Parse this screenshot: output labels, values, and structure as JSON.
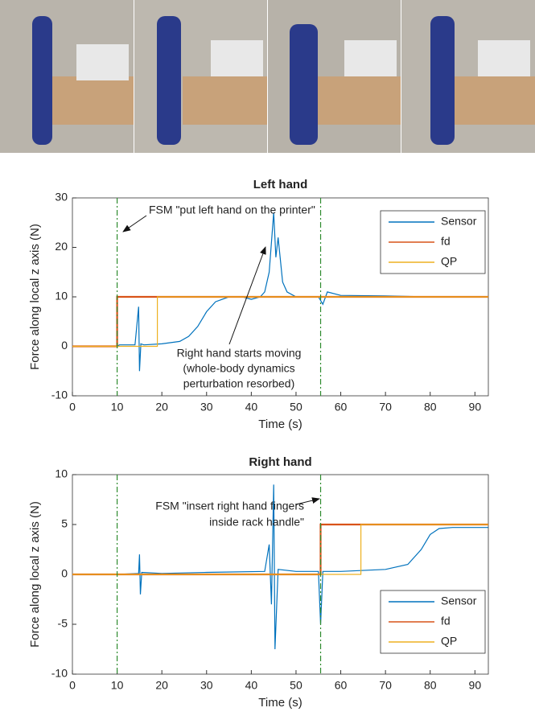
{
  "chart_data": [
    {
      "type": "line",
      "title": "Left hand",
      "xlabel": "Time (s)",
      "ylabel": "Force along local z axis (N)",
      "xlim": [
        0,
        93
      ],
      "ylim": [
        -10,
        30
      ],
      "xticks": [
        0,
        10,
        20,
        30,
        40,
        50,
        60,
        70,
        80,
        90
      ],
      "yticks": [
        -10,
        0,
        10,
        20,
        30
      ],
      "legend": "upper right",
      "vlines": [
        10,
        55.5
      ],
      "vline_color": "#2e8b2e",
      "annotations": [
        [
          "FSM \"put left hand on the printer\""
        ],
        [
          "Right hand starts moving",
          "(whole-body dynamics",
          "perturbation resorbed)"
        ]
      ],
      "series": [
        {
          "name": "Sensor",
          "color": "#0072bd",
          "x": [
            0,
            10,
            10.5,
            14,
            14.8,
            15,
            15.3,
            16,
            20,
            24,
            26,
            28,
            30,
            32,
            35,
            38,
            40,
            42,
            43,
            44,
            45,
            45.5,
            46,
            47,
            48,
            50,
            55,
            56,
            57,
            60,
            70,
            80,
            93
          ],
          "values": [
            0,
            0,
            0.3,
            0.3,
            8,
            -5,
            0.5,
            0.3,
            0.5,
            1,
            2,
            4,
            7,
            9,
            10,
            10,
            9.5,
            10,
            11,
            15,
            27,
            18,
            22,
            13,
            11,
            10,
            10,
            8.5,
            11,
            10.3,
            10.2,
            10,
            10
          ]
        },
        {
          "name": "fd",
          "color": "#d95319",
          "x": [
            0,
            10,
            10,
            93
          ],
          "values": [
            0,
            0,
            10,
            10
          ]
        },
        {
          "name": "QP",
          "color": "#edb120",
          "x": [
            0,
            19,
            19,
            93
          ],
          "values": [
            0,
            0,
            10,
            10
          ]
        }
      ]
    },
    {
      "type": "line",
      "title": "Right hand",
      "xlabel": "Time (s)",
      "ylabel": "Force along local z axis (N)",
      "xlim": [
        0,
        93
      ],
      "ylim": [
        -10,
        10
      ],
      "xticks": [
        0,
        10,
        20,
        30,
        40,
        50,
        60,
        70,
        80,
        90
      ],
      "yticks": [
        -10,
        -5,
        0,
        5,
        10
      ],
      "legend": "lower right",
      "vlines": [
        10,
        55.5
      ],
      "vline_color": "#2e8b2e",
      "annotations": [
        [
          "FSM \"insert right hand fingers",
          "inside rack handle\""
        ]
      ],
      "series": [
        {
          "name": "Sensor",
          "color": "#0072bd",
          "x": [
            0,
            10,
            14.8,
            15,
            15.2,
            15.5,
            20,
            30,
            43,
            44,
            44.5,
            45,
            45.3,
            46,
            50,
            55,
            55.5,
            56,
            60,
            70,
            75,
            78,
            80,
            82,
            85,
            93
          ],
          "values": [
            0,
            0,
            0.1,
            2,
            -2,
            0.2,
            0.1,
            0.2,
            0.3,
            3,
            -3,
            9,
            -7.5,
            0.5,
            0.3,
            0.3,
            -5,
            0.3,
            0.3,
            0.5,
            1,
            2.5,
            4,
            4.6,
            4.7,
            4.7
          ]
        },
        {
          "name": "fd",
          "color": "#d95319",
          "x": [
            0,
            55.5,
            55.5,
            93
          ],
          "values": [
            0,
            0,
            5,
            5
          ]
        },
        {
          "name": "QP",
          "color": "#edb120",
          "x": [
            0,
            64.5,
            64.5,
            93
          ],
          "values": [
            0,
            0,
            5,
            5
          ]
        }
      ]
    }
  ]
}
